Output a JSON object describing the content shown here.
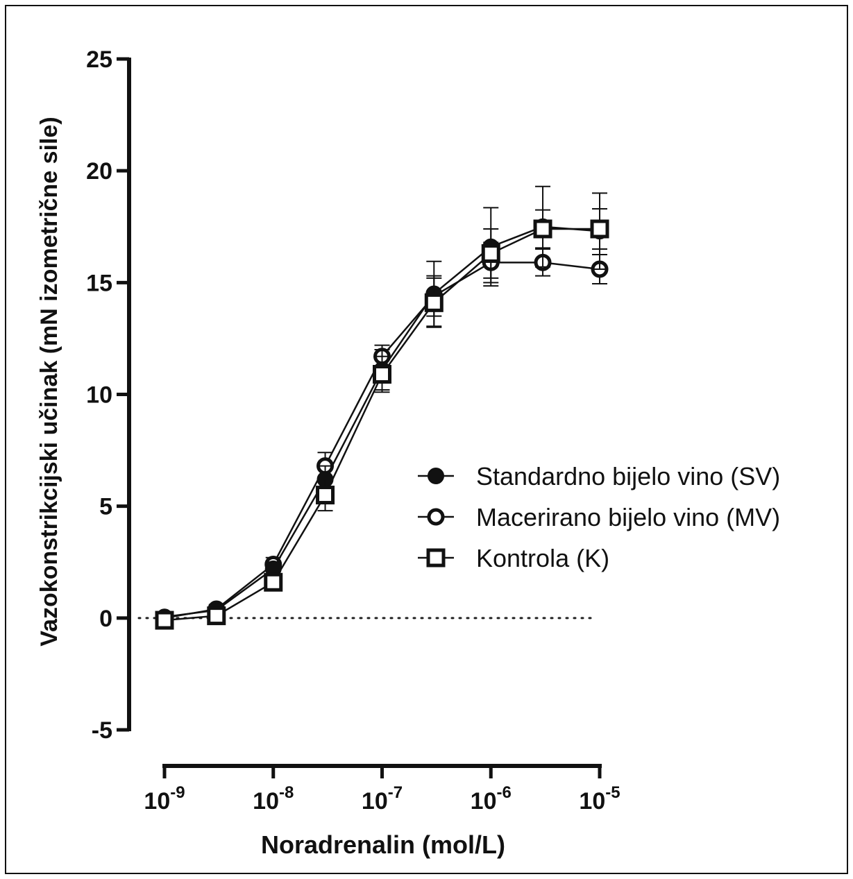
{
  "chart_data": {
    "type": "line",
    "xlabel": "Noradrenalin (mol/L)",
    "ylabel": "Vazokonstrikcijski učinak (mN izometrične sile)",
    "x_scale": "log",
    "xlim": [
      1e-09,
      1e-05
    ],
    "ylim": [
      -5,
      25
    ],
    "x_ticks": [
      {
        "value": 1e-09,
        "base": "10",
        "exp": "-9"
      },
      {
        "value": 1e-08,
        "base": "10",
        "exp": "-8"
      },
      {
        "value": 1e-07,
        "base": "10",
        "exp": "-7"
      },
      {
        "value": 1e-06,
        "base": "10",
        "exp": "-6"
      },
      {
        "value": 1e-05,
        "base": "10",
        "exp": "-5"
      }
    ],
    "y_ticks": [
      -5,
      0,
      5,
      10,
      15,
      20,
      25
    ],
    "y_tick_labels": [
      "-5",
      "0",
      "5",
      "10",
      "15",
      "20",
      "25"
    ],
    "reference_line": {
      "y": 0,
      "style": "dotted"
    },
    "legend_position": "right-middle",
    "x": [
      1e-09,
      3e-09,
      1e-08,
      3e-08,
      1e-07,
      3e-07,
      1e-06,
      3e-06,
      1e-05
    ],
    "series": [
      {
        "name": "Standardno bijelo vino (SV)",
        "marker": "filled-circle",
        "values": [
          0.05,
          0.35,
          2.2,
          6.2,
          11.1,
          14.5,
          16.6,
          17.5,
          17.3
        ],
        "errors": [
          0.15,
          0.2,
          0.3,
          0.6,
          0.9,
          1.45,
          1.75,
          1.8,
          1.7
        ]
      },
      {
        "name": "Macerirano bijelo vino (MV)",
        "marker": "open-circle",
        "values": [
          0.0,
          0.4,
          2.4,
          6.8,
          11.7,
          14.4,
          15.9,
          15.9,
          15.6
        ],
        "errors": [
          0.15,
          0.2,
          0.3,
          0.6,
          0.5,
          0.9,
          0.9,
          0.6,
          0.65
        ]
      },
      {
        "name": "Kontrola (K)",
        "marker": "open-square",
        "values": [
          -0.1,
          0.1,
          1.6,
          5.5,
          10.9,
          14.1,
          16.3,
          17.4,
          17.4
        ],
        "errors": [
          0.15,
          0.2,
          0.25,
          0.7,
          0.8,
          1.1,
          1.1,
          0.85,
          0.9
        ]
      }
    ]
  }
}
